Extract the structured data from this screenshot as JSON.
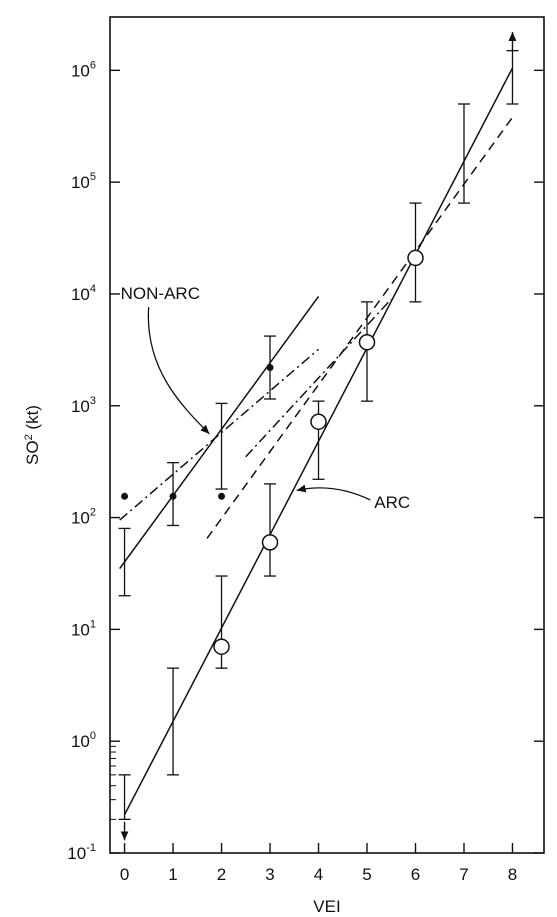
{
  "chart_data": {
    "type": "scatter",
    "xlabel": "VEI",
    "ylabel_main": "SO",
    "ylabel_sup": "2",
    "ylabel_tail": " (kt)",
    "yscale": "log",
    "xlim": [
      -0.3,
      8.65
    ],
    "ylim": [
      0.1,
      3000000
    ],
    "x_ticks": [
      "0",
      "1",
      "2",
      "3",
      "4",
      "5",
      "6",
      "7",
      "8"
    ],
    "y_ticks": [
      {
        "base": "10",
        "exp": "-1",
        "value": 0.1
      },
      {
        "base": "10",
        "exp": "0",
        "value": 1
      },
      {
        "base": "10",
        "exp": "1",
        "value": 10
      },
      {
        "base": "10",
        "exp": "2",
        "value": 100
      },
      {
        "base": "10",
        "exp": "3",
        "value": 1000
      },
      {
        "base": "10",
        "exp": "4",
        "value": 10000
      },
      {
        "base": "10",
        "exp": "5",
        "value": 100000
      },
      {
        "base": "10",
        "exp": "6",
        "value": 1000000
      }
    ],
    "arc_points": [
      {
        "x": 2,
        "y": 7
      },
      {
        "x": 3,
        "y": 60
      },
      {
        "x": 4,
        "y": 720
      },
      {
        "x": 5,
        "y": 3700
      },
      {
        "x": 6,
        "y": 21000
      }
    ],
    "non_arc_points": [
      {
        "x": 0,
        "y": 155
      },
      {
        "x": 1,
        "y": 155
      },
      {
        "x": 2,
        "y": 155
      },
      {
        "x": 3,
        "y": 2200
      }
    ],
    "error_bars": [
      {
        "x": 0,
        "low": 0.2,
        "high": 0.5
      },
      {
        "x": 0,
        "low": 20,
        "high": 80
      },
      {
        "x": 1,
        "low": 0.5,
        "high": 4.5
      },
      {
        "x": 1,
        "low": 85,
        "high": 310
      },
      {
        "x": 2,
        "low": 4.5,
        "high": 30
      },
      {
        "x": 2,
        "low": 180,
        "high": 1050
      },
      {
        "x": 3,
        "low": 30,
        "high": 200
      },
      {
        "x": 3,
        "low": 1150,
        "high": 4200
      },
      {
        "x": 4,
        "low": 220,
        "high": 1100
      },
      {
        "x": 5,
        "low": 1100,
        "high": 8500
      },
      {
        "x": 6,
        "low": 8500,
        "high": 65000
      },
      {
        "x": 7,
        "low": 65000,
        "high": 500000
      },
      {
        "x": 8,
        "low": 500000,
        "high": 1500000
      }
    ],
    "lines": [
      {
        "name": "ARC",
        "style": "solid",
        "points": [
          [
            0,
            0.22
          ],
          [
            8,
            1050000
          ]
        ]
      },
      {
        "name": "NON-ARC",
        "style": "solid",
        "points": [
          [
            -0.1,
            35
          ],
          [
            4,
            9500
          ]
        ]
      },
      {
        "name": "",
        "style": "dashdot",
        "points": [
          [
            -0.1,
            95
          ],
          [
            4,
            3200
          ]
        ]
      },
      {
        "name": "",
        "style": "dashed",
        "points": [
          [
            1.7,
            65
          ],
          [
            8,
            380000
          ]
        ]
      },
      {
        "name": "",
        "style": "dashdot",
        "points": [
          [
            2.5,
            350
          ],
          [
            5.5,
            9000
          ]
        ]
      }
    ],
    "arrows": [
      {
        "x": 0,
        "y_from": 0.19,
        "y_to": 0.13
      },
      {
        "x": 8,
        "y_from": 1500000,
        "y_to": 2200000
      }
    ],
    "annotations": [
      {
        "text": "NON-ARC",
        "label_at": [
          -0.08,
          9000
        ],
        "arrow_to": [
          1.75,
          560
        ]
      },
      {
        "text": "ARC",
        "label_at": [
          5.15,
          122
        ],
        "arrow_to": [
          3.55,
          175
        ]
      }
    ]
  }
}
